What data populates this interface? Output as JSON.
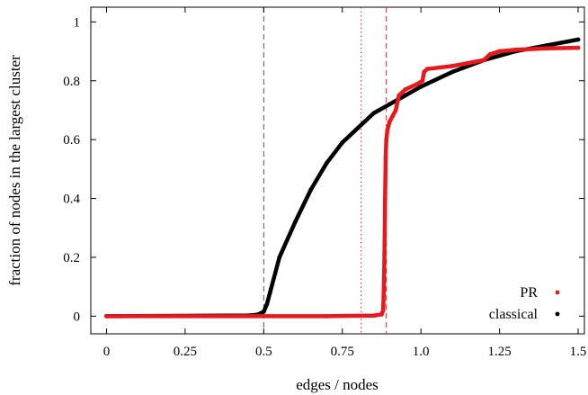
{
  "chart_data": {
    "type": "scatter",
    "title": "",
    "xlabel": "edges / nodes",
    "ylabel": "fraction of nodes in the largest cluster",
    "xlim": [
      -0.05,
      1.52
    ],
    "ylim": [
      -0.06,
      1.05
    ],
    "x_ticks": [
      0,
      0.25,
      0.5,
      0.75,
      1.0,
      1.25,
      1.5
    ],
    "x_tick_labels": [
      "0",
      "0.25",
      "0.5",
      "0.75",
      "1.0",
      "1.25",
      "1.5"
    ],
    "y_ticks": [
      0,
      0.2,
      0.4,
      0.6,
      0.8,
      1
    ],
    "y_tick_labels": [
      "0",
      "0.2",
      "0.4",
      "0.6",
      "0.8",
      "1"
    ],
    "grid": false,
    "legend_position": "bottom-right",
    "series": [
      {
        "name": "classical",
        "color": "#000000",
        "points": [
          [
            0,
            0
          ],
          [
            0.45,
            0.002
          ],
          [
            0.48,
            0.005
          ],
          [
            0.5,
            0.015
          ],
          [
            0.51,
            0.04
          ],
          [
            0.52,
            0.08
          ],
          [
            0.55,
            0.2
          ],
          [
            0.6,
            0.32
          ],
          [
            0.65,
            0.43
          ],
          [
            0.7,
            0.52
          ],
          [
            0.75,
            0.59
          ],
          [
            0.8,
            0.64
          ],
          [
            0.85,
            0.69
          ],
          [
            0.9,
            0.72
          ],
          [
            0.95,
            0.75
          ],
          [
            1.0,
            0.78
          ],
          [
            1.1,
            0.83
          ],
          [
            1.2,
            0.87
          ],
          [
            1.3,
            0.9
          ],
          [
            1.4,
            0.92
          ],
          [
            1.5,
            0.94
          ]
        ]
      },
      {
        "name": "PR",
        "color": "#e8191c",
        "points": [
          [
            0,
            0
          ],
          [
            0.5,
            0
          ],
          [
            0.7,
            0
          ],
          [
            0.85,
            0.002
          ],
          [
            0.875,
            0.006
          ],
          [
            0.88,
            0.02
          ],
          [
            0.882,
            0.09
          ],
          [
            0.884,
            0.21
          ],
          [
            0.886,
            0.4
          ],
          [
            0.888,
            0.54
          ],
          [
            0.89,
            0.6
          ],
          [
            0.893,
            0.63
          ],
          [
            0.9,
            0.66
          ],
          [
            0.91,
            0.68
          ],
          [
            0.92,
            0.7
          ],
          [
            0.93,
            0.75
          ],
          [
            0.95,
            0.77
          ],
          [
            0.99,
            0.79
          ],
          [
            1.005,
            0.8
          ],
          [
            1.01,
            0.83
          ],
          [
            1.02,
            0.84
          ],
          [
            1.1,
            0.85
          ],
          [
            1.15,
            0.86
          ],
          [
            1.2,
            0.87
          ],
          [
            1.22,
            0.89
          ],
          [
            1.25,
            0.9
          ],
          [
            1.3,
            0.905
          ],
          [
            1.4,
            0.91
          ],
          [
            1.5,
            0.912
          ]
        ]
      }
    ],
    "vertical_lines": [
      {
        "x": 0.5,
        "color": "#555555",
        "style": "dashed"
      },
      {
        "x": 0.81,
        "color": "#e8191c",
        "style": "dotted"
      },
      {
        "x": 0.89,
        "color": "#e8191c",
        "style": "dashed"
      }
    ]
  }
}
